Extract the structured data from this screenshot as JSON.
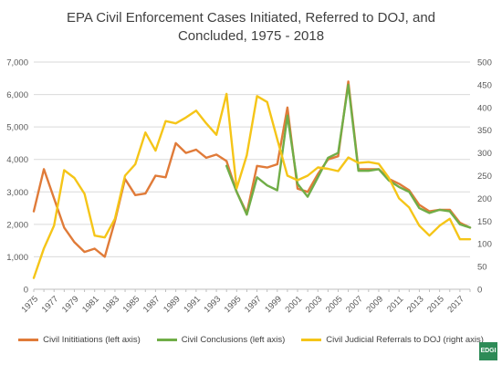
{
  "chart_data": {
    "type": "line",
    "title_line1": "EPA Civil Enforcement Cases Initiated, Referred to DOJ, and",
    "title_line2": "Concluded, 1975 - 2018",
    "x": [
      1975,
      1976,
      1977,
      1978,
      1979,
      1980,
      1981,
      1982,
      1983,
      1984,
      1985,
      1986,
      1987,
      1988,
      1989,
      1990,
      1991,
      1992,
      1993,
      1994,
      1995,
      1996,
      1997,
      1998,
      1999,
      2000,
      2001,
      2002,
      2003,
      2004,
      2005,
      2006,
      2007,
      2008,
      2009,
      2010,
      2011,
      2012,
      2013,
      2014,
      2015,
      2016,
      2017,
      2018
    ],
    "x_tick_labels": [
      "1975",
      "1977",
      "1979",
      "1981",
      "1983",
      "1985",
      "1987",
      "1989",
      "1991",
      "1993",
      "1995",
      "1997",
      "1999",
      "2001",
      "2003",
      "2005",
      "2007",
      "2009",
      "2011",
      "2013",
      "2015",
      "2017"
    ],
    "left_axis": {
      "ylim": [
        0,
        7000
      ],
      "ticks": [
        0,
        1000,
        2000,
        3000,
        4000,
        5000,
        6000,
        7000
      ],
      "tick_labels": [
        "0",
        "1,000",
        "2,000",
        "3,000",
        "4,000",
        "5,000",
        "6,000",
        "7,000"
      ]
    },
    "right_axis": {
      "ylim": [
        0,
        500
      ],
      "ticks": [
        0,
        50,
        100,
        150,
        200,
        250,
        300,
        350,
        400,
        450,
        500
      ],
      "tick_labels": [
        "0",
        "50",
        "100",
        "150",
        "200",
        "250",
        "300",
        "350",
        "400",
        "450",
        "500"
      ]
    },
    "grid": true,
    "legend_position": "bottom",
    "series": [
      {
        "name": "Civil Inititiations (left axis)",
        "axis": "left",
        "color": "#e07b39",
        "values": [
          2400,
          3700,
          2800,
          1900,
          1450,
          1150,
          1250,
          1000,
          2100,
          3400,
          2900,
          2950,
          3500,
          3450,
          4500,
          4200,
          4300,
          4050,
          4150,
          3950,
          3000,
          2350,
          3800,
          3750,
          3850,
          5600,
          3100,
          3000,
          3550,
          4000,
          4100,
          6400,
          3700,
          3700,
          3700,
          3400,
          3250,
          3050,
          2600,
          2400,
          2450,
          2450,
          2050,
          1900
        ]
      },
      {
        "name": "Civil Conclusions (left axis)",
        "axis": "left",
        "color": "#70ad47",
        "values": [
          null,
          null,
          null,
          null,
          null,
          null,
          null,
          null,
          null,
          null,
          null,
          null,
          null,
          null,
          null,
          null,
          null,
          null,
          null,
          3800,
          3000,
          2300,
          3450,
          3200,
          3050,
          5350,
          3250,
          2850,
          3450,
          4050,
          4200,
          6300,
          3650,
          3650,
          3700,
          3350,
          3150,
          3000,
          2500,
          2350,
          2450,
          2400,
          2000,
          1900
        ]
      },
      {
        "name": "Civil Judicial Referrals to DOJ (right axis)",
        "axis": "right",
        "color": "#f5c518",
        "values": [
          25,
          90,
          140,
          262,
          245,
          210,
          118,
          114,
          155,
          250,
          275,
          345,
          305,
          370,
          365,
          378,
          393,
          365,
          340,
          430,
          222,
          295,
          425,
          412,
          330,
          250,
          240,
          250,
          268,
          265,
          260,
          290,
          278,
          280,
          276,
          245,
          200,
          180,
          140,
          118,
          140,
          155,
          110,
          110
        ]
      }
    ]
  },
  "logo_text": "EDGI"
}
